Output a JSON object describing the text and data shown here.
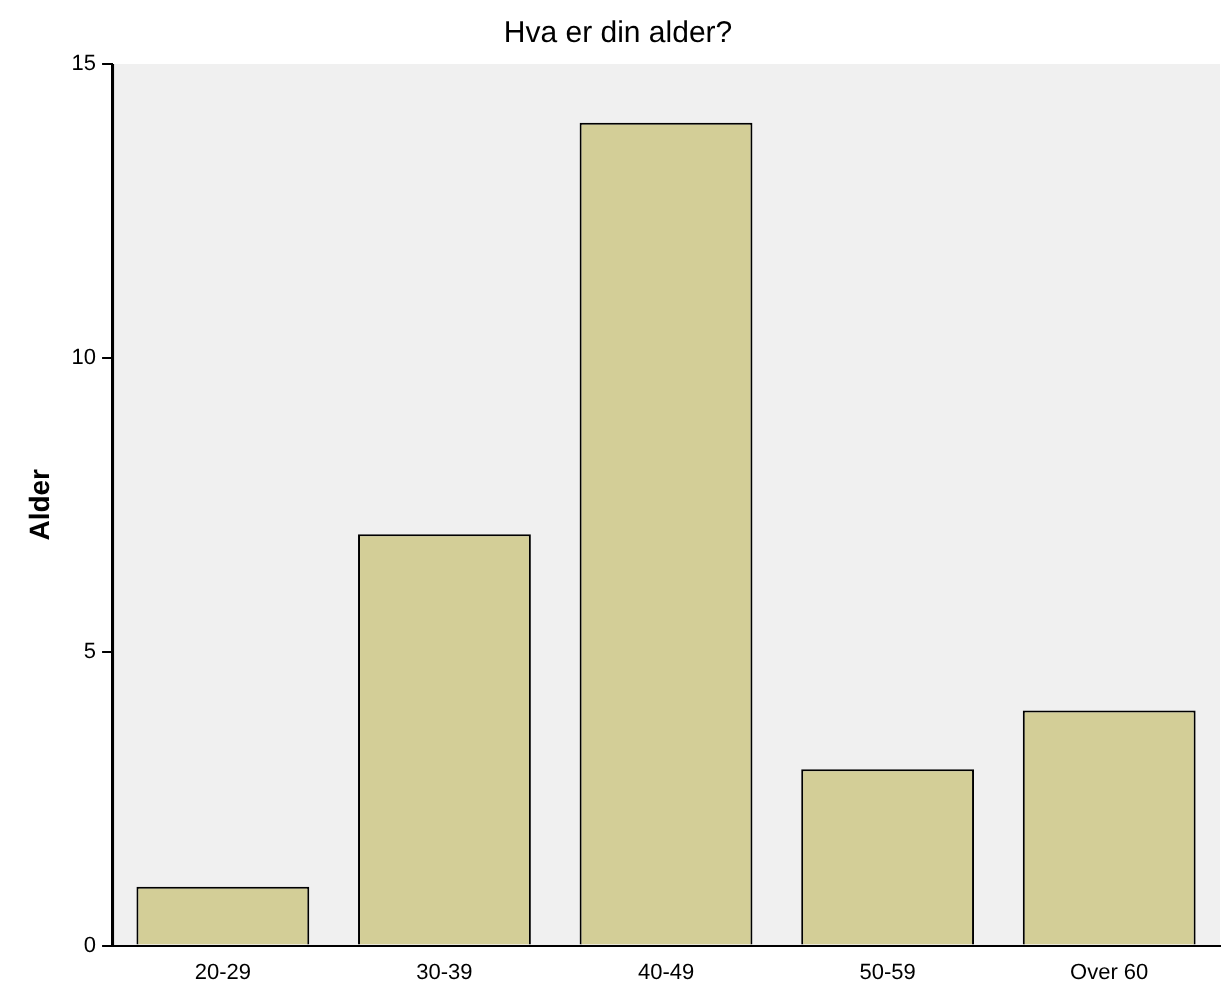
{
  "chart_data": {
    "type": "bar",
    "title": "Hva er din alder?",
    "ylabel": "Alder",
    "categories": [
      "20-29",
      "30-39",
      "40-49",
      "50-59",
      "Over 60"
    ],
    "values": [
      1,
      7,
      14,
      3,
      4
    ],
    "color": "#d3ce97",
    "ylim": [
      0,
      15
    ],
    "yticks": [
      0,
      5,
      10,
      15
    ],
    "grid": false,
    "legend": false
  }
}
